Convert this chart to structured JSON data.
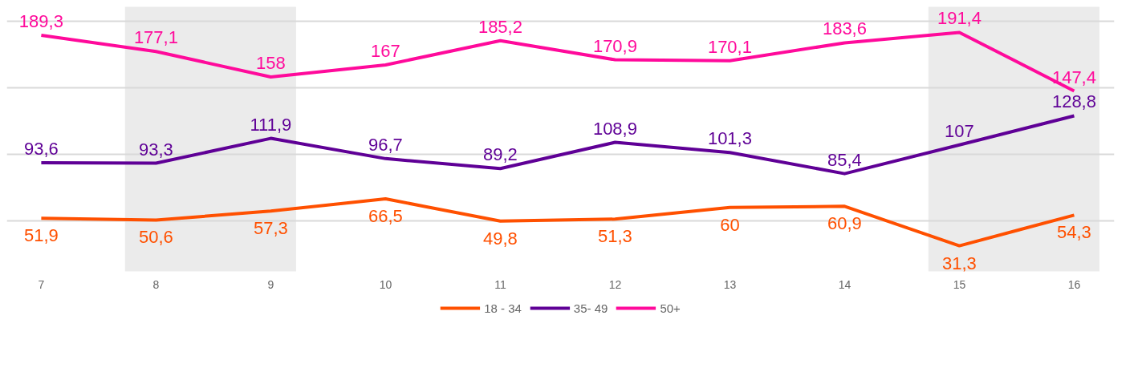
{
  "chart_data": {
    "type": "line",
    "categories": [
      "7",
      "8",
      "9",
      "10",
      "11",
      "12",
      "13",
      "14",
      "15",
      "16"
    ],
    "series": [
      {
        "name": "18 - 34",
        "color": "#ff5000",
        "values": [
          51.9,
          50.6,
          57.3,
          66.5,
          49.8,
          51.3,
          60,
          60.9,
          31.3,
          54.3
        ],
        "value_labels": [
          "51,9",
          "50,6",
          "57,3",
          "66,5",
          "49,8",
          "51,3",
          "60",
          "60,9",
          "31,3",
          "54,3"
        ]
      },
      {
        "name": "35- 49",
        "color": "#5f0096",
        "values": [
          93.6,
          93.3,
          111.9,
          96.7,
          89.2,
          108.9,
          101.3,
          85.4,
          107,
          128.8
        ],
        "value_labels": [
          "93,6",
          "93,3",
          "111,9",
          "96,7",
          "89,2",
          "108,9",
          "101,3",
          "85,4",
          "107",
          "128,8"
        ]
      },
      {
        "name": "50+",
        "color": "#ff0a9b",
        "values": [
          189.3,
          177.1,
          158,
          167,
          185.2,
          170.9,
          170.1,
          183.6,
          191.4,
          147.4
        ],
        "value_labels": [
          "189,3",
          "177,1",
          "158",
          "167",
          "185,2",
          "170,9",
          "170,1",
          "183,6",
          "191,4",
          "147,4"
        ]
      }
    ],
    "tick_labels": "x",
    "grid": "y",
    "legend": "bottom",
    "line_style": "solid",
    "bands": [
      {
        "axis": "x",
        "from": "8",
        "to": "9",
        "color": "#ebebeb"
      },
      {
        "axis": "x",
        "from": "15",
        "to": "16",
        "color": "#ebebeb"
      }
    ]
  }
}
